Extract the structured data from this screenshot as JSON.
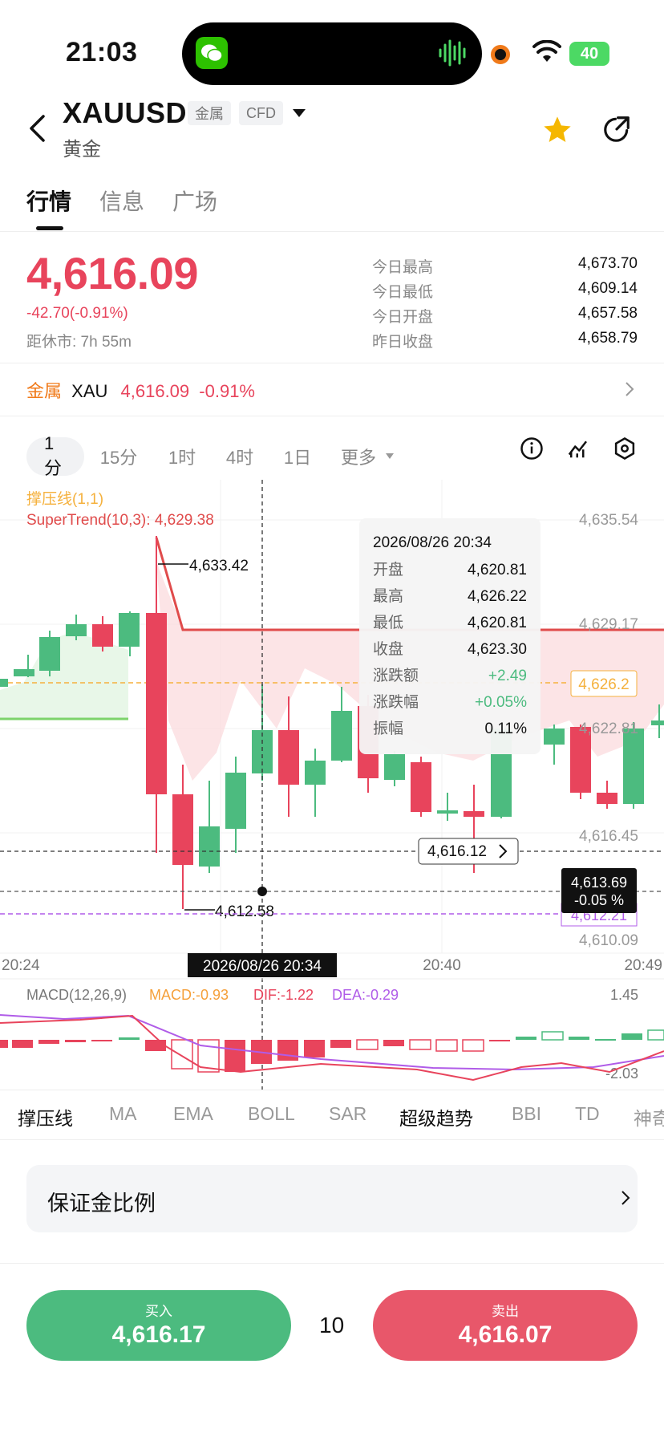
{
  "status": {
    "time": "21:03",
    "battery": "40"
  },
  "header": {
    "symbol": "XAUUSD",
    "tag_metal": "金属",
    "tag_cfd": "CFD",
    "name": "黄金"
  },
  "tabs": [
    "行情",
    "信息",
    "广场"
  ],
  "quote": {
    "price": "4,616.09",
    "change": "-42.70(-0.91%)",
    "close_countdown": "距休市: 7h 55m",
    "stats": [
      {
        "label": "今日最高",
        "value": "4,673.70"
      },
      {
        "label": "今日最低",
        "value": "4,609.14"
      },
      {
        "label": "今日开盘",
        "value": "4,657.58"
      },
      {
        "label": "昨日收盘",
        "value": "4,658.79"
      }
    ]
  },
  "metal_row": {
    "category": "金属",
    "symbol": "XAU",
    "price": "4,616.09",
    "change": "-0.91%"
  },
  "periods": [
    "1分",
    "15分",
    "1时",
    "4时",
    "1日",
    "更多"
  ],
  "chart": {
    "legend_line1": "撑压线(1,1)",
    "legend_line2": "SuperTrend(10,3): 4,629.38",
    "y_ticks": [
      "4,635.54",
      "4,629.17",
      "4,622.81",
      "4,616.45",
      "4,610.09"
    ],
    "x_ticks": [
      "20:24",
      "20:40",
      "20:49"
    ],
    "high_label": "4,633.42",
    "low_label": "4,612.58",
    "support_tag": "4,626.2",
    "crosshair_price": "4,616.12",
    "last_price": "4,613.69",
    "last_change": "-0.05 %",
    "purple_line_value": "4,612.21",
    "crosshair_time": "2026/08/26 20:34",
    "tooltip": {
      "date": "2026/08/26 20:34",
      "rows": [
        {
          "label": "开盘",
          "value": "4,620.81"
        },
        {
          "label": "最高",
          "value": "4,626.22"
        },
        {
          "label": "最低",
          "value": "4,620.81"
        },
        {
          "label": "收盘",
          "value": "4,623.30"
        },
        {
          "label": "涨跌额",
          "value": "+2.49"
        },
        {
          "label": "涨跌幅",
          "value": "+0.05%"
        },
        {
          "label": "振幅",
          "value": "0.11%"
        }
      ]
    },
    "macd": {
      "title": "MACD(12,26,9)",
      "macd": "MACD:-0.93",
      "dif": "DIF:-1.22",
      "dea": "DEA:-0.29",
      "max": "1.45",
      "min": "-2.03"
    },
    "colors": {
      "up": "#4cbb7f",
      "down": "#e8445c",
      "supertrend": "#e04b4b",
      "support": "#f5b13d",
      "purple": "#b05ce8"
    }
  },
  "indicators": [
    "撑压线",
    "MA",
    "EMA",
    "BOLL",
    "SAR",
    "超级趋势",
    "BBI",
    "TD",
    "神奇"
  ],
  "margin_ratio": "保证金比例",
  "trade": {
    "buy_label": "买入",
    "buy_price": "4,616.17",
    "quantity": "10",
    "sell_label": "卖出",
    "sell_price": "4,616.07"
  }
}
